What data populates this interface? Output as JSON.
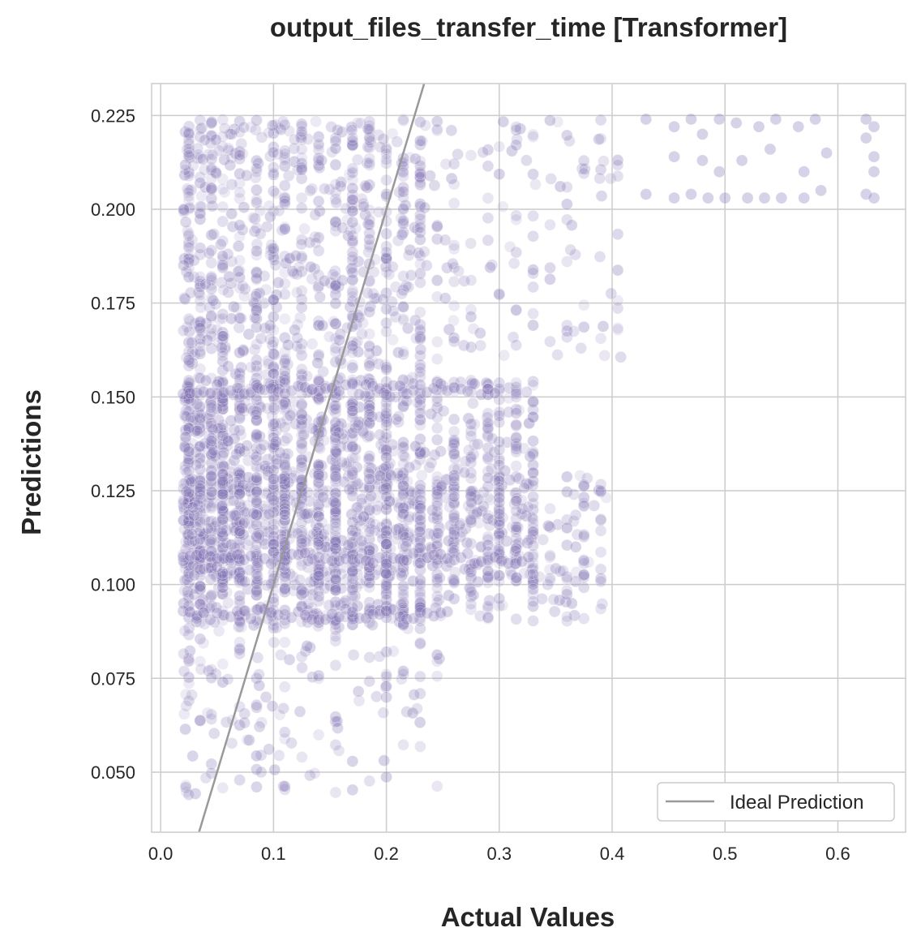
{
  "chart_data": {
    "type": "scatter",
    "title": "output_files_transfer_time [Transformer]",
    "xlabel": "Actual Values",
    "ylabel": "Predictions",
    "xlim": [
      -0.008,
      0.66
    ],
    "ylim": [
      0.034,
      0.2335
    ],
    "x_ticks": [
      "0.0",
      "0.1",
      "0.2",
      "0.3",
      "0.4",
      "0.5",
      "0.6"
    ],
    "x_tick_values": [
      0.0,
      0.1,
      0.2,
      0.3,
      0.4,
      0.5,
      0.6
    ],
    "y_ticks": [
      "0.050",
      "0.075",
      "0.100",
      "0.125",
      "0.150",
      "0.175",
      "0.200",
      "0.225"
    ],
    "y_tick_values": [
      0.05,
      0.075,
      0.1,
      0.125,
      0.15,
      0.175,
      0.2,
      0.225
    ],
    "grid": true,
    "legend": {
      "placement": "lower-right",
      "entries": [
        "Ideal Prediction"
      ]
    },
    "point_color": "#8172b3",
    "line_color": "#999999",
    "ideal_line": {
      "name": "Ideal Prediction",
      "from": 0.034,
      "to": 0.2335
    },
    "series": [
      {
        "columns_x": [
          0.025,
          0.035,
          0.045,
          0.055,
          0.07,
          0.085,
          0.1,
          0.11,
          0.125,
          0.14,
          0.155,
          0.17,
          0.185,
          0.2,
          0.215,
          0.23,
          0.245,
          0.26,
          0.275,
          0.29,
          0.3,
          0.315,
          0.33,
          0.345,
          0.36,
          0.375,
          0.39,
          0.405
        ],
        "clusters": [
          {
            "x": [
              0.02,
              0.23
            ],
            "y": [
              0.088,
              0.224
            ],
            "count": 1500
          },
          {
            "x": [
              0.02,
              0.33
            ],
            "y": [
              0.1,
              0.155
            ],
            "count": 1000
          },
          {
            "x": [
              0.02,
              0.4
            ],
            "y": [
              0.09,
              0.13
            ],
            "count": 500
          },
          {
            "x": [
              0.23,
              0.41
            ],
            "y": [
              0.16,
              0.224
            ],
            "count": 150
          },
          {
            "x": [
              0.02,
              0.25
            ],
            "y": [
              0.044,
              0.088
            ],
            "count": 150
          }
        ],
        "bands": [
          {
            "y": 0.107,
            "x": [
              0.02,
              0.33
            ]
          },
          {
            "y": 0.152,
            "x": [
              0.02,
              0.3
            ]
          },
          {
            "y": 0.092,
            "x": [
              0.02,
              0.26
            ]
          }
        ],
        "upper_right_points": [
          [
            0.43,
            0.224
          ],
          [
            0.43,
            0.204
          ],
          [
            0.455,
            0.222
          ],
          [
            0.455,
            0.214
          ],
          [
            0.455,
            0.203
          ],
          [
            0.47,
            0.224
          ],
          [
            0.47,
            0.204
          ],
          [
            0.48,
            0.22
          ],
          [
            0.48,
            0.213
          ],
          [
            0.485,
            0.203
          ],
          [
            0.495,
            0.224
          ],
          [
            0.495,
            0.21
          ],
          [
            0.5,
            0.203
          ],
          [
            0.51,
            0.223
          ],
          [
            0.515,
            0.213
          ],
          [
            0.52,
            0.203
          ],
          [
            0.53,
            0.222
          ],
          [
            0.535,
            0.203
          ],
          [
            0.54,
            0.216
          ],
          [
            0.545,
            0.224
          ],
          [
            0.55,
            0.203
          ],
          [
            0.565,
            0.222
          ],
          [
            0.57,
            0.21
          ],
          [
            0.57,
            0.203
          ],
          [
            0.58,
            0.224
          ],
          [
            0.585,
            0.205
          ],
          [
            0.59,
            0.215
          ],
          [
            0.625,
            0.224
          ],
          [
            0.625,
            0.219
          ],
          [
            0.625,
            0.204
          ],
          [
            0.632,
            0.222
          ],
          [
            0.632,
            0.214
          ],
          [
            0.632,
            0.203
          ],
          [
            0.632,
            0.21
          ]
        ]
      }
    ]
  }
}
